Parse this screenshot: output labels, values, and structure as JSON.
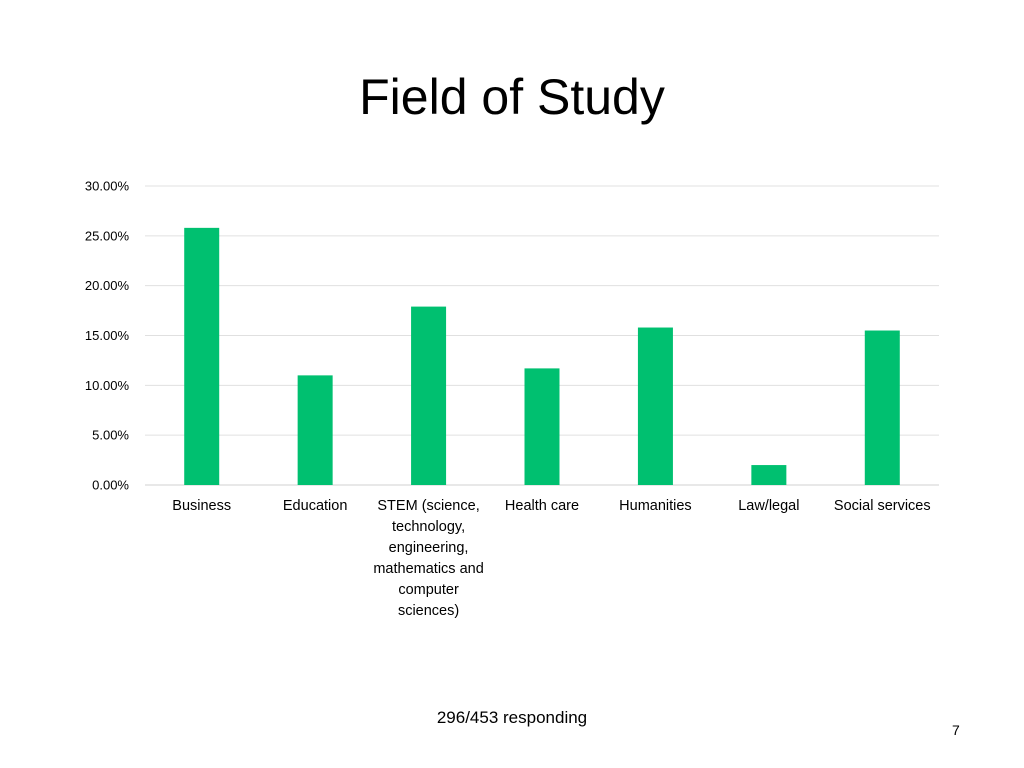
{
  "title": "Field of Study",
  "footer": "296/453 responding",
  "page_number": "7",
  "chart_data": {
    "type": "bar",
    "title": "",
    "xlabel": "",
    "ylabel": "",
    "categories": [
      "Business",
      "Education",
      "STEM (science, technology, engineering, mathematics and computer sciences)",
      "Health care",
      "Humanities",
      "Law/legal",
      "Social services"
    ],
    "values": [
      25.8,
      11.0,
      17.9,
      11.7,
      15.8,
      2.0,
      15.5
    ],
    "value_format": "percent",
    "ylim": [
      0,
      30
    ],
    "yticks": [
      "0.00%",
      "5.00%",
      "10.00%",
      "15.00%",
      "20.00%",
      "25.00%",
      "30.00%"
    ],
    "bar_color": "#00c070",
    "grid": true,
    "legend": "none"
  }
}
